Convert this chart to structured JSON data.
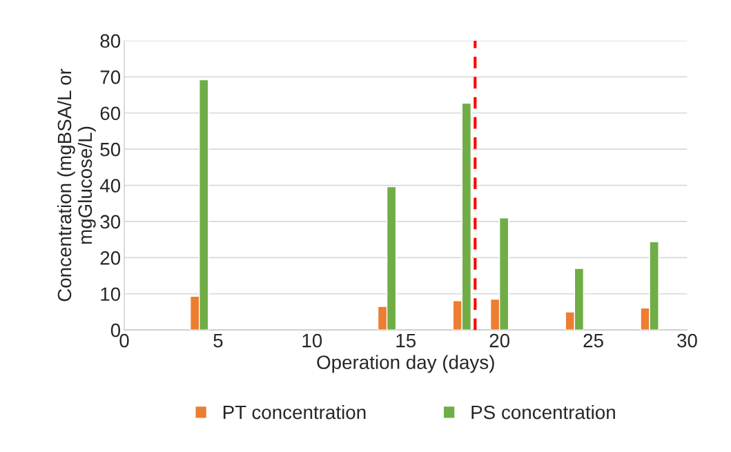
{
  "chart_data": {
    "type": "bar",
    "xlabel": "Operation day (days)",
    "ylabel": "Concentration (mgBSA/L or\nmgGlucose/L)",
    "x": [
      4,
      14,
      18,
      20,
      24,
      28
    ],
    "series": [
      {
        "name": "PT concentration",
        "color": "#ed7d31",
        "values": [
          9.3,
          6.5,
          8.1,
          8.5,
          5.0,
          6.1
        ]
      },
      {
        "name": "PS concentration",
        "color": "#70ad47",
        "values": [
          69.2,
          39.6,
          62.7,
          31.0,
          17.0,
          24.4
        ]
      }
    ],
    "xlim": [
      0,
      30
    ],
    "xticks": [
      0,
      5,
      10,
      15,
      20,
      25,
      30
    ],
    "ylim": [
      0,
      80
    ],
    "yticks": [
      0,
      10,
      20,
      30,
      40,
      50,
      60,
      70,
      80
    ],
    "ref_lines": [
      {
        "axis": "x",
        "value": 18.7,
        "color": "#ff0000",
        "line_style": "dashed"
      }
    ],
    "grid": "y",
    "legend": "bottom"
  }
}
